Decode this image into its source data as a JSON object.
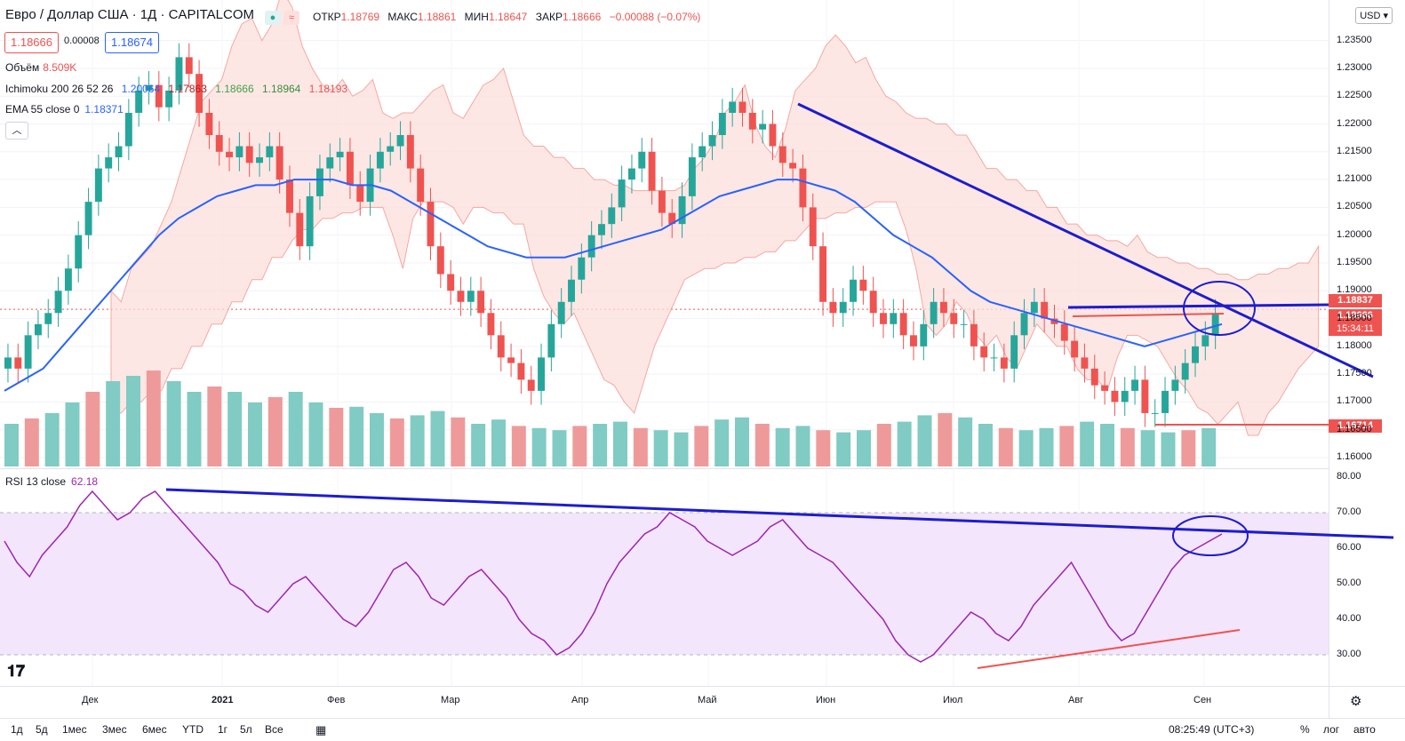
{
  "header": {
    "title": "Евро / Доллар США · 1Д · CAPITALCOM",
    "ohlc": {
      "open_label": "ОТКР",
      "open": "1.18769",
      "high_label": "МАКС",
      "high": "1.18861",
      "low_label": "МИН",
      "low": "1.18647",
      "close_label": "ЗАКР",
      "close": "1.18666",
      "change": "−0.00088 (−0.07%)"
    },
    "bid": "1.18666",
    "spread": "0.00008",
    "ask": "1.18674",
    "currency": "USD",
    "collapse_icon": "chevron-up-icon"
  },
  "indicators": {
    "volume": {
      "name": "Объём",
      "value": "8.509K"
    },
    "ichimoku": {
      "name": "Ichimoku 200 26 52 26",
      "values": [
        "1.20064",
        "1.17863",
        "1.18666",
        "1.18964",
        "1.18193"
      ]
    },
    "ema": {
      "name": "EMA 55 close 0",
      "value": "1.18371"
    },
    "rsi": {
      "name": "RSI 13 close",
      "value": "62.18"
    }
  },
  "price_axis": {
    "ticks": [
      "1.23500",
      "1.23000",
      "1.22500",
      "1.22000",
      "1.21500",
      "1.21000",
      "1.20500",
      "1.20000",
      "1.19500",
      "1.19000",
      "1.18500",
      "1.18000",
      "1.17500",
      "1.17000",
      "1.16500",
      "1.16000"
    ],
    "labels": {
      "top_line": "1.18837",
      "current": "1.18666",
      "countdown": "15:34:11",
      "support": "1.16714"
    }
  },
  "rsi_axis": {
    "ticks": [
      "80.00",
      "70.00",
      "60.00",
      "50.00",
      "40.00",
      "30.00"
    ]
  },
  "time_axis": {
    "ticks": [
      "Дек",
      "2021",
      "Фев",
      "Мар",
      "Апр",
      "Май",
      "Июн",
      "Июл",
      "Авг",
      "Сен"
    ]
  },
  "bottom_toolbar": {
    "ranges": [
      "1д",
      "5д",
      "1мес",
      "3мес",
      "6мес",
      "YTD",
      "1г",
      "5л",
      "Все"
    ],
    "clock": "08:25:49 (UTC+3)",
    "percent": "%",
    "log": "лог",
    "auto": "авто"
  },
  "colors": {
    "bull": "#26a69a",
    "bear": "#ef5350",
    "ema": "#2962ff",
    "rsi": "#9c27b0",
    "trend": "#1d1ccf",
    "cloud_bear": "#fde0dd",
    "cloud_bull": "#d8f0d4"
  },
  "chart_data": {
    "type": "candlestick",
    "symbol": "EUR/USD",
    "timeframe": "1D",
    "ylim": [
      1.16,
      1.2375
    ],
    "x": [
      "Дек",
      "2021",
      "Фев",
      "Мар",
      "Апр",
      "Май",
      "Июн",
      "Июл",
      "Авг",
      "Сен"
    ],
    "close_series": [
      1.178,
      1.176,
      1.182,
      1.184,
      1.186,
      1.19,
      1.194,
      1.2,
      1.206,
      1.212,
      1.214,
      1.216,
      1.222,
      1.226,
      1.227,
      1.223,
      1.226,
      1.232,
      1.229,
      1.222,
      1.218,
      1.215,
      1.214,
      1.216,
      1.213,
      1.214,
      1.216,
      1.21,
      1.204,
      1.198,
      1.207,
      1.212,
      1.214,
      1.215,
      1.209,
      1.206,
      1.212,
      1.215,
      1.216,
      1.218,
      1.212,
      1.206,
      1.198,
      1.193,
      1.19,
      1.188,
      1.19,
      1.186,
      1.182,
      1.178,
      1.177,
      1.174,
      1.172,
      1.178,
      1.184,
      1.188,
      1.192,
      1.196,
      1.2,
      1.202,
      1.205,
      1.21,
      1.212,
      1.215,
      1.208,
      1.204,
      1.202,
      1.207,
      1.214,
      1.216,
      1.218,
      1.222,
      1.224,
      1.222,
      1.219,
      1.22,
      1.216,
      1.213,
      1.212,
      1.205,
      1.198,
      1.188,
      1.186,
      1.188,
      1.192,
      1.19,
      1.186,
      1.184,
      1.186,
      1.182,
      1.18,
      1.184,
      1.188,
      1.186,
      1.184,
      1.184,
      1.18,
      1.178,
      1.178,
      1.176,
      1.182,
      1.186,
      1.188,
      1.185,
      1.184,
      1.181,
      1.178,
      1.176,
      1.173,
      1.172,
      1.17,
      1.172,
      1.174,
      1.168,
      1.168,
      1.172,
      1.174,
      1.177,
      1.18,
      1.182,
      1.186
    ],
    "ema55_series": [
      1.172,
      1.174,
      1.176,
      1.18,
      1.184,
      1.188,
      1.192,
      1.196,
      1.2,
      1.203,
      1.205,
      1.207,
      1.208,
      1.209,
      1.209,
      1.21,
      1.21,
      1.21,
      1.209,
      1.209,
      1.208,
      1.206,
      1.204,
      1.202,
      1.2,
      1.198,
      1.197,
      1.196,
      1.196,
      1.196,
      1.197,
      1.198,
      1.199,
      1.2,
      1.201,
      1.203,
      1.205,
      1.207,
      1.208,
      1.209,
      1.21,
      1.21,
      1.209,
      1.208,
      1.206,
      1.203,
      1.2,
      1.198,
      1.196,
      1.193,
      1.19,
      1.188,
      1.187,
      1.186,
      1.185,
      1.184,
      1.183,
      1.182,
      1.181,
      1.18,
      1.181,
      1.182,
      1.183,
      1.184
    ],
    "volume_series": [
      4,
      4.5,
      5,
      6,
      7,
      8,
      8.5,
      9,
      8,
      7,
      7.5,
      7,
      6,
      6.5,
      7,
      6,
      5.5,
      5.6,
      5,
      4.5,
      4.8,
      5.2,
      4.6,
      4,
      4.4,
      3.8,
      3.6,
      3.4,
      3.8,
      4,
      4.2,
      3.6,
      3.4,
      3.2,
      3.8,
      4.4,
      4.6,
      4,
      3.6,
      3.8,
      3.4,
      3.2,
      3.4,
      4,
      4.2,
      4.8,
      5,
      4.6,
      4,
      3.6,
      3.4,
      3.6,
      3.8,
      4.2,
      4,
      3.6,
      3.4,
      3.2,
      3.4,
      3.6
    ],
    "rsi_series": [
      62,
      56,
      52,
      58,
      62,
      66,
      72,
      76,
      72,
      68,
      70,
      74,
      76,
      72,
      68,
      64,
      60,
      56,
      50,
      48,
      44,
      42,
      46,
      50,
      52,
      48,
      44,
      40,
      38,
      42,
      48,
      54,
      56,
      52,
      46,
      44,
      48,
      52,
      54,
      50,
      46,
      40,
      36,
      34,
      30,
      32,
      36,
      42,
      50,
      56,
      60,
      64,
      66,
      70,
      68,
      66,
      62,
      60,
      58,
      60,
      62,
      66,
      68,
      64,
      60,
      58,
      56,
      52,
      48,
      44,
      40,
      34,
      30,
      28,
      30,
      34,
      38,
      42,
      40,
      36,
      34,
      38,
      44,
      48,
      52,
      56,
      50,
      44,
      38,
      34,
      36,
      42,
      48,
      54,
      58,
      60,
      62,
      64
    ]
  }
}
